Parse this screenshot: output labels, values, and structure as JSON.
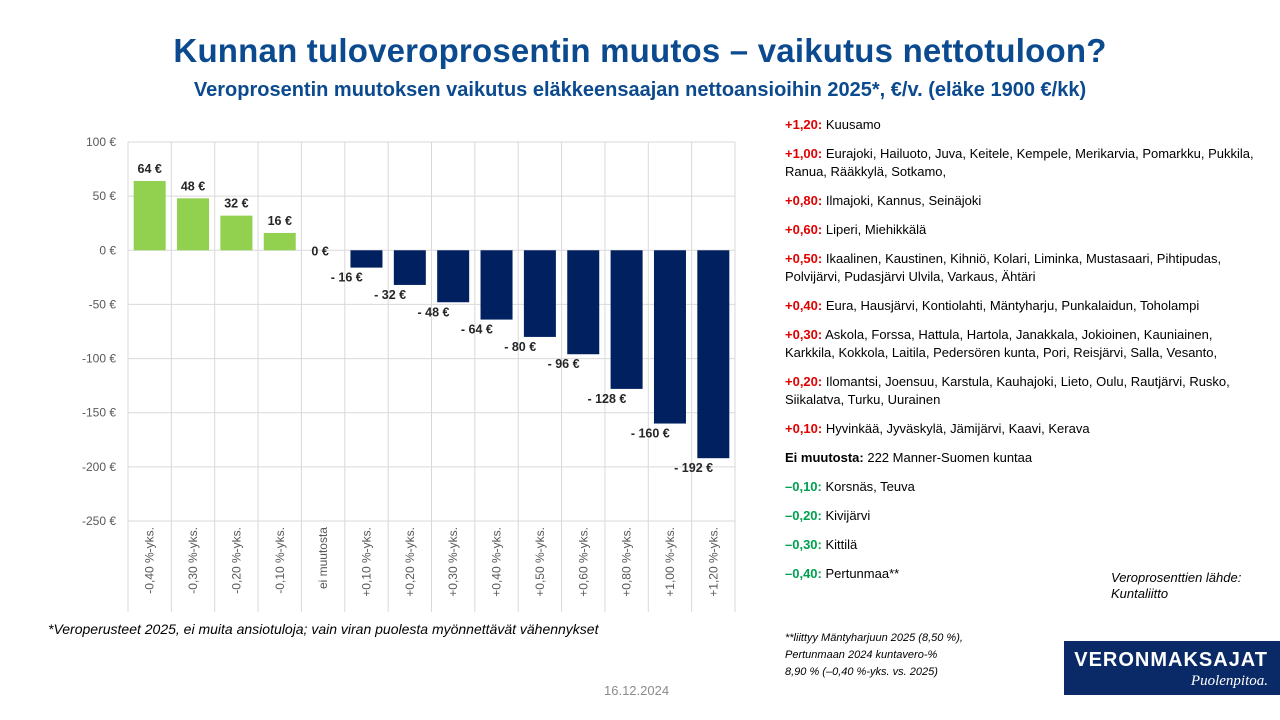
{
  "title": "Kunnan tuloveroprosentin muutos – vaikutus nettotuloon?",
  "subtitle": "Veroprosentin muutoksen vaikutus eläkkeensaajan nettoansioihin 2025*, €/v. (eläke 1900 €/kk)",
  "colors": {
    "positive": "#92d050",
    "negative": "#002060",
    "title": "#0b4a8e",
    "plus": "#e00000",
    "minus": "#00a050"
  },
  "chart_data": {
    "type": "bar",
    "categories": [
      "-0,40 %-yks.",
      "-0,30 %-yks.",
      "-0,20 %-yks.",
      "-0,10 %-yks.",
      "ei muutosta",
      "+0,10 %-yks.",
      "+0,20 %-yks.",
      "+0,30 %-yks.",
      "+0,40 %-yks.",
      "+0,50 %-yks.",
      "+0,60 %-yks.",
      "+0,80 %-yks.",
      "+1,00 %-yks.",
      "+1,20 %-yks."
    ],
    "values": [
      64,
      48,
      32,
      16,
      0,
      -16,
      -32,
      -48,
      -64,
      -80,
      -96,
      -128,
      -160,
      -192
    ],
    "data_labels": [
      "64 €",
      "48 €",
      "32 €",
      "16 €",
      "0 €",
      "- 16 €",
      "- 32 €",
      "- 48 €",
      "- 64 €",
      "- 80 €",
      "- 96 €",
      "- 128 €",
      "- 160 €",
      "- 192 €"
    ],
    "yticks": [
      100,
      50,
      0,
      -50,
      -100,
      -150,
      -200,
      -250
    ],
    "ytick_labels": [
      "100 €",
      "50 €",
      "0 €",
      "-50 €",
      "-100 €",
      "-150 €",
      "-200 €",
      "-250 €"
    ],
    "ylim": [
      -250,
      100
    ],
    "grid": true,
    "legend": "none"
  },
  "footnote": "*Veroperusteet 2025, ei muita ansiotuloja; vain viran puolesta myönnettävät vähennykset",
  "date": "16.12.2024",
  "changes": [
    {
      "label": "+1,20:",
      "municipalities": "Kuusamo",
      "tone": "red"
    },
    {
      "label": "+1,00:",
      "municipalities": "Eurajoki, Hailuoto, Juva, Keitele, Kempele, Merikarvia, Pomarkku, Pukkila, Ranua, Rääkkylä, Sotkamo,",
      "tone": "red"
    },
    {
      "label": "+0,80:",
      "municipalities": "Ilmajoki, Kannus, Seinäjoki",
      "tone": "red"
    },
    {
      "label": "+0,60:",
      "municipalities": "Liperi, Miehikkälä",
      "tone": "red"
    },
    {
      "label": "+0,50:",
      "municipalities": "Ikaalinen, Kaustinen, Kihniö, Kolari, Liminka, Mustasaari, Pihtipudas, Polvijärvi, Pudasjärvi Ulvila, Varkaus, Ähtäri",
      "tone": "red"
    },
    {
      "label": "+0,40:",
      "municipalities": "Eura, Hausjärvi, Kontiolahti, Mäntyharju, Punkalaidun, Toholampi",
      "tone": "red"
    },
    {
      "label": "+0,30:",
      "municipalities": "Askola, Forssa, Hattula, Hartola, Janakkala, Jokioinen, Kauniainen, Karkkila, Kokkola, Laitila, Pedersören kunta, Pori, Reisjärvi, Salla, Vesanto,",
      "tone": "red"
    },
    {
      "label": "+0,20:",
      "municipalities": "Ilomantsi, Joensuu, Karstula, Kauhajoki, Lieto, Oulu, Rautjärvi, Rusko, Siikalatva, Turku, Uurainen",
      "tone": "red"
    },
    {
      "label": "+0,10:",
      "municipalities": "Hyvinkää, Jyväskylä, Jämijärvi, Kaavi, Kerava",
      "tone": "red"
    },
    {
      "label": "Ei muutosta:",
      "municipalities": "222 Manner-Suomen kuntaa",
      "tone": "black"
    },
    {
      "label": "–0,10:",
      "municipalities": "Korsnäs, Teuva",
      "tone": "green"
    },
    {
      "label": "–0,20:",
      "municipalities": "Kivijärvi",
      "tone": "green"
    },
    {
      "label": "–0,30:",
      "municipalities": "Kittilä",
      "tone": "green"
    },
    {
      "label": "–0,40:",
      "municipalities": "Pertunmaa**",
      "tone": "green"
    }
  ],
  "note": {
    "line1": "**liittyy Mäntyharjuun 2025 (8,50 %),",
    "line2": "Pertunmaan 2024 kuntavero-%",
    "line3": "8,90 % (–0,40 %-yks. vs. 2025)"
  },
  "source": {
    "line1": "Veroprosenttien lähde:",
    "line2": "Kuntaliitto"
  },
  "logo": {
    "name": "VERONMAKSAJAT",
    "tagline": "Puolenpitoa."
  }
}
